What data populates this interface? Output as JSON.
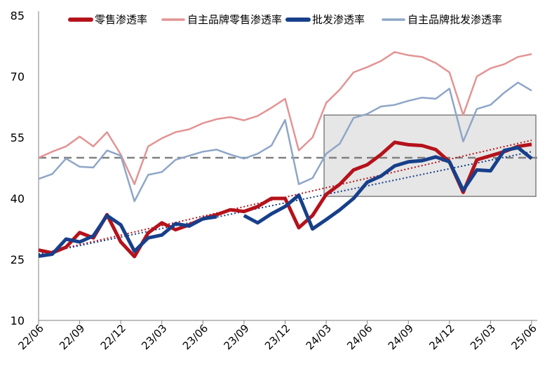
{
  "chart_data": {
    "type": "line",
    "ylim": [
      10,
      85
    ],
    "yticks": [
      10,
      25,
      40,
      55,
      70,
      85
    ],
    "x": [
      "22/06",
      "22/07",
      "22/08",
      "22/09",
      "22/10",
      "22/11",
      "22/12",
      "23/01",
      "23/02",
      "23/03",
      "23/04",
      "23/05",
      "23/06",
      "23/07",
      "23/08",
      "23/09",
      "23/10",
      "23/11",
      "23/12",
      "24/01",
      "24/02",
      "24/03",
      "24/04",
      "24/05",
      "24/06",
      "24/07",
      "24/08",
      "24/09",
      "24/10",
      "24/11",
      "24/12",
      "25/01",
      "25/02",
      "25/03",
      "25/04",
      "25/05",
      "25/06"
    ],
    "xtick_labels": [
      "22/06",
      "22/09",
      "22/12",
      "23/03",
      "23/06",
      "23/09",
      "23/12",
      "24/03",
      "24/06",
      "24/09",
      "24/12",
      "25/03",
      "25/06"
    ],
    "reference_line": {
      "y": 50,
      "style": "dashed",
      "color": "#808080"
    },
    "highlight_box": {
      "x_from": "24/03",
      "x_to": "25/06",
      "y_from": 40.5,
      "y_to": 60.5,
      "fill": "#e6e6e6",
      "stroke": "#808080"
    },
    "series": [
      {
        "name": "零售渗透率",
        "color": "#b5121b",
        "width": 5,
        "values": [
          27.3,
          26.6,
          28.0,
          31.6,
          30.3,
          36.0,
          29.3,
          25.7,
          31.5,
          34.0,
          32.3,
          33.5,
          35.0,
          36.0,
          37.2,
          36.8,
          38.0,
          40.0,
          40.0,
          32.8,
          35.8,
          41.0,
          43.5,
          47.0,
          48.3,
          50.8,
          53.8,
          53.2,
          53.0,
          52.0,
          49.0,
          41.5,
          49.5,
          50.5,
          51.5,
          52.8,
          53.3
        ]
      },
      {
        "name": "自主品牌零售渗透率",
        "color": "#e29494",
        "width": 2.5,
        "values": [
          50.0,
          51.5,
          52.8,
          55.2,
          52.8,
          56.3,
          50.8,
          43.5,
          52.8,
          54.8,
          56.3,
          57.0,
          58.5,
          59.5,
          60.0,
          59.2,
          60.3,
          62.3,
          64.5,
          51.8,
          55.0,
          63.5,
          66.8,
          71.0,
          72.3,
          73.8,
          76.0,
          75.2,
          74.8,
          73.3,
          71.0,
          60.5,
          70.0,
          72.0,
          73.0,
          74.8,
          75.5
        ]
      },
      {
        "name": "批发渗透率",
        "color": "#173f8a",
        "width": 5,
        "values": [
          25.8,
          26.3,
          30.0,
          29.3,
          30.8,
          35.8,
          33.5,
          27.0,
          30.3,
          31.0,
          33.8,
          33.2,
          35.0,
          35.5,
          null,
          35.8,
          34.0,
          36.2,
          38.0,
          40.8,
          32.5,
          34.8,
          37.2,
          40.0,
          44.0,
          45.5,
          48.0,
          49.0,
          49.3,
          50.2,
          49.0,
          42.0,
          47.0,
          46.8,
          51.8,
          52.5,
          49.8
        ]
      },
      {
        "name": "自主品牌批发渗透率",
        "color": "#8ea6c7",
        "width": 2.5,
        "values": [
          44.8,
          46.0,
          49.8,
          47.8,
          47.6,
          51.8,
          50.5,
          39.3,
          45.8,
          46.5,
          49.5,
          50.5,
          51.5,
          52.0,
          50.8,
          49.8,
          51.0,
          53.0,
          59.3,
          43.5,
          45.0,
          51.0,
          53.5,
          59.8,
          60.8,
          62.6,
          63.0,
          64.0,
          64.8,
          64.5,
          67.0,
          54.0,
          62.0,
          63.0,
          66.0,
          68.5,
          66.5
        ]
      }
    ],
    "trendlines": [
      {
        "of": "零售渗透率",
        "style": "dotted",
        "color": "#b5121b",
        "from": [
          0,
          26.3
        ],
        "to": [
          36,
          54.3
        ]
      },
      {
        "of": "批发渗透率",
        "style": "dotted",
        "color": "#173f8a",
        "from": [
          0,
          26.3
        ],
        "to": [
          36,
          51.5
        ]
      }
    ],
    "legend_position": "top"
  }
}
